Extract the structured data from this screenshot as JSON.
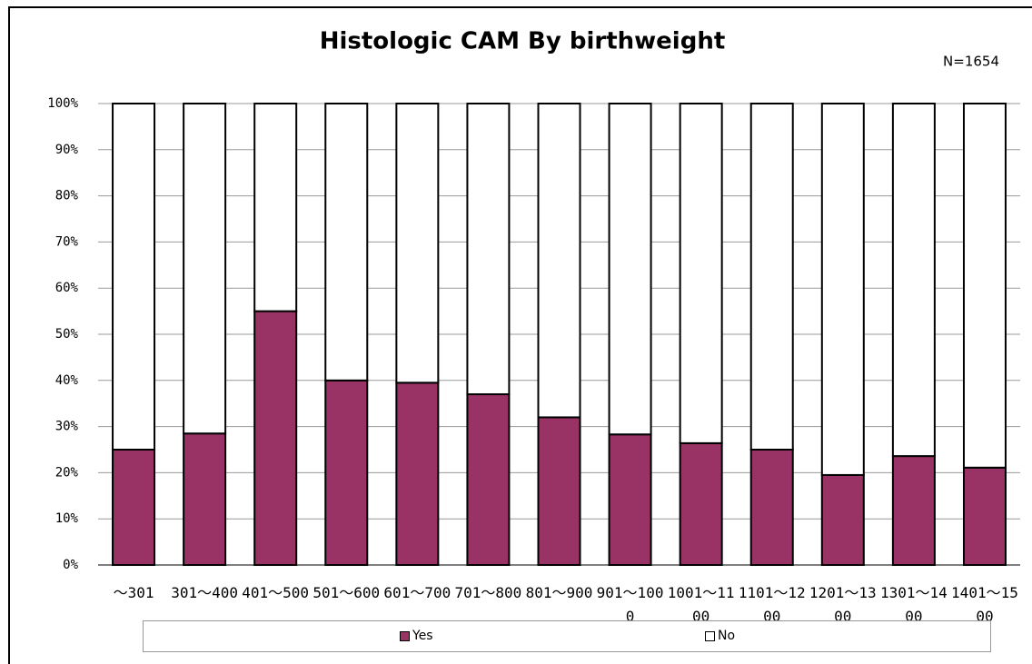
{
  "chart_data": {
    "type": "stacked_bar",
    "title": "Histologic CAM By birthweight",
    "annotation": "N=1654",
    "categories": [
      "～301",
      "301～400",
      "401～500",
      "501～600",
      "601～700",
      "701～800",
      "801～900",
      "901～1000",
      "1001～1100",
      "1101～1200",
      "1201～1300",
      "1301～1400",
      "1401～1500"
    ],
    "series": [
      {
        "name": "Yes",
        "color": "#993366",
        "values": [
          25,
          28.5,
          55,
          40,
          39.5,
          37,
          32,
          28.3,
          26.4,
          25,
          19.5,
          23.6,
          21.1
        ]
      },
      {
        "name": "No",
        "color": "#ffffff",
        "values": [
          75,
          71.5,
          45,
          60,
          60.5,
          63,
          68,
          71.7,
          73.6,
          75,
          80.5,
          76.4,
          78.9
        ]
      }
    ],
    "ylim": [
      0,
      100
    ],
    "yticks": [
      {
        "value": 0,
        "label": "0%"
      },
      {
        "value": 10,
        "label": "10%"
      },
      {
        "value": 20,
        "label": "20%"
      },
      {
        "value": 30,
        "label": "30%"
      },
      {
        "value": 40,
        "label": "40%"
      },
      {
        "value": 50,
        "label": "50%"
      },
      {
        "value": 60,
        "label": "60%"
      },
      {
        "value": 70,
        "label": "70%"
      },
      {
        "value": 80,
        "label": "80%"
      },
      {
        "value": 90,
        "label": "90%"
      },
      {
        "value": 100,
        "label": "100%"
      }
    ],
    "grid": true,
    "legend": "bottom"
  }
}
